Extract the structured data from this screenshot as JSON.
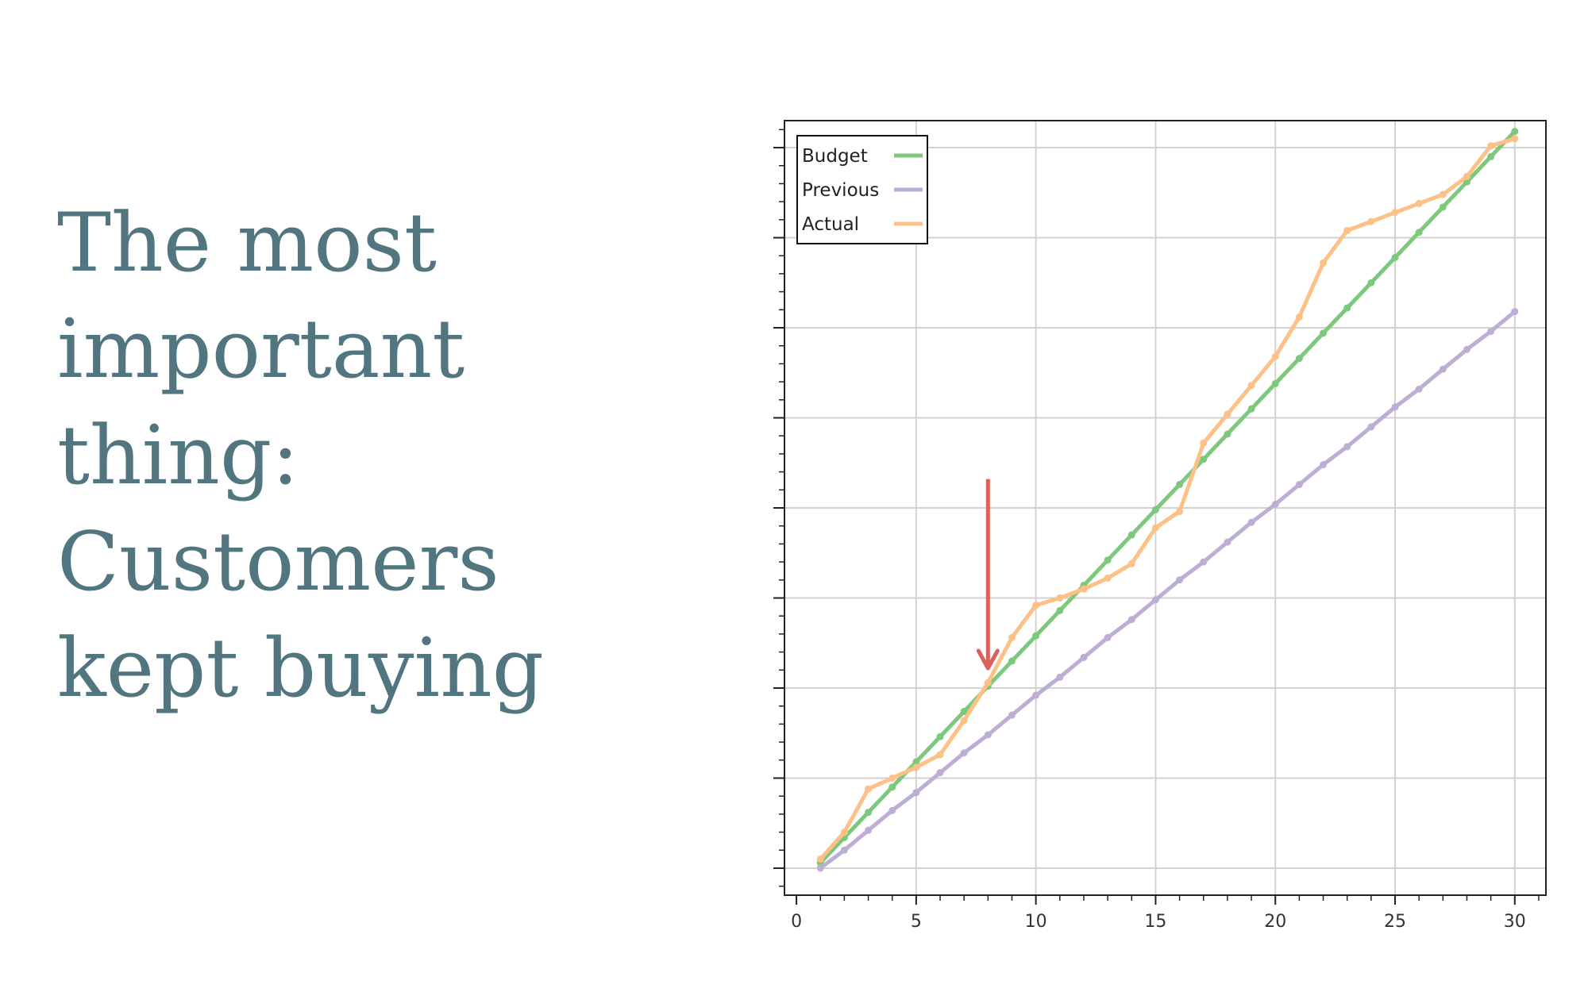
{
  "headline": {
    "lines": [
      "The most",
      "important",
      "thing:",
      "Customers",
      "kept buying"
    ],
    "color": "#527680"
  },
  "chart_data": {
    "type": "line",
    "title": "",
    "xlabel": "",
    "ylabel": "",
    "xlim": [
      -0.5,
      31.3
    ],
    "ylim": [
      0.5,
      43.5
    ],
    "grid": true,
    "legend_position": "top-left",
    "x_ticks": [
      0,
      5,
      10,
      15,
      20,
      25,
      30
    ],
    "y_tick_labels_shown": false,
    "series": [
      {
        "name": "Budget",
        "color": "#7dc87d",
        "x": [
          1,
          2,
          3,
          4,
          5,
          6,
          7,
          8,
          9,
          10,
          11,
          12,
          13,
          14,
          15,
          16,
          17,
          18,
          19,
          20,
          21,
          22,
          23,
          24,
          25,
          26,
          27,
          28,
          29,
          30
        ],
        "y": [
          2.3,
          3.7,
          5.1,
          6.5,
          7.9,
          9.3,
          10.7,
          12.1,
          13.5,
          14.9,
          16.3,
          17.7,
          19.1,
          20.5,
          21.9,
          23.3,
          24.7,
          26.1,
          27.5,
          28.9,
          30.3,
          31.7,
          33.1,
          34.5,
          35.9,
          37.3,
          38.7,
          40.1,
          41.5,
          42.9
        ]
      },
      {
        "name": "Previous",
        "color": "#beaed4",
        "x": [
          1,
          2,
          3,
          4,
          5,
          6,
          7,
          8,
          9,
          10,
          11,
          12,
          13,
          14,
          15,
          16,
          17,
          18,
          19,
          20,
          21,
          22,
          23,
          24,
          25,
          26,
          27,
          28,
          29,
          30
        ],
        "y": [
          2.0,
          3.0,
          4.1,
          5.2,
          6.2,
          7.3,
          8.4,
          9.4,
          10.5,
          11.6,
          12.6,
          13.7,
          14.8,
          15.8,
          16.9,
          18.0,
          19.0,
          20.1,
          21.2,
          22.2,
          23.3,
          24.4,
          25.4,
          26.5,
          27.6,
          28.6,
          29.7,
          30.8,
          31.8,
          32.9
        ]
      },
      {
        "name": "Actual",
        "color": "#fdc086",
        "x": [
          1,
          2,
          3,
          4,
          5,
          6,
          7,
          8,
          9,
          10,
          11,
          12,
          13,
          14,
          15,
          16,
          17,
          18,
          19,
          20,
          21,
          22,
          23,
          24,
          25,
          26,
          27,
          28,
          29,
          30
        ],
        "y": [
          2.5,
          4.0,
          6.4,
          7.0,
          7.6,
          8.3,
          10.2,
          12.3,
          14.8,
          16.6,
          17.0,
          17.5,
          18.1,
          18.9,
          20.9,
          21.8,
          25.6,
          27.2,
          28.8,
          30.4,
          32.6,
          35.6,
          37.4,
          37.9,
          38.4,
          38.9,
          39.4,
          40.4,
          42.1,
          42.5
        ]
      }
    ],
    "annotation": {
      "type": "arrow",
      "x": 8,
      "y_from": 23.6,
      "y_to": 13.1,
      "color": "#d9625b"
    }
  }
}
